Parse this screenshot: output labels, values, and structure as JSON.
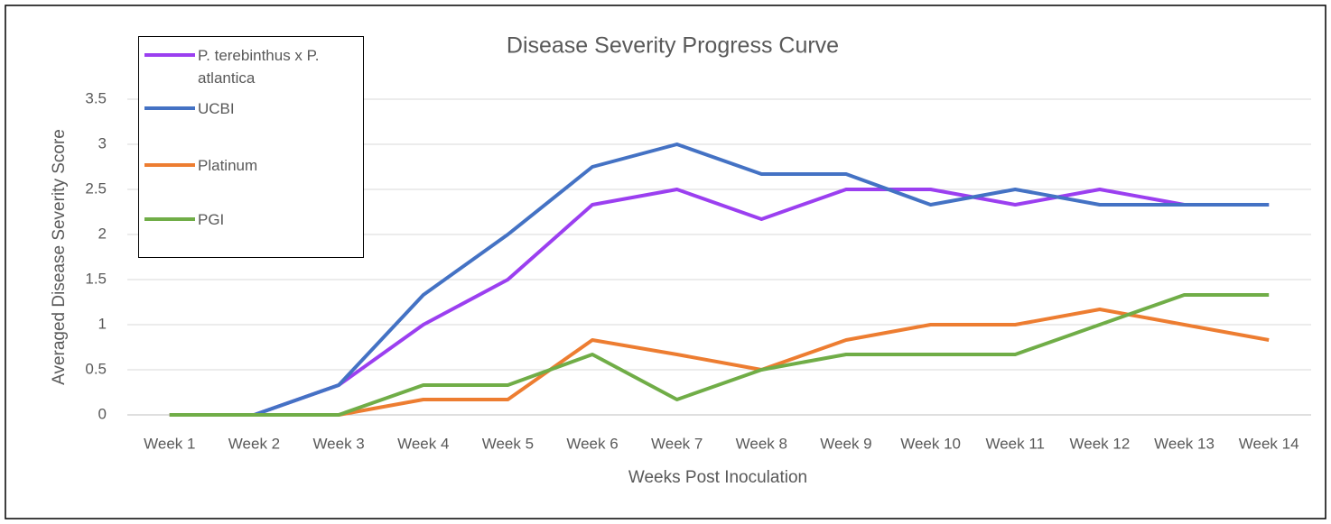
{
  "chart_data": {
    "type": "line",
    "title": "Disease Severity Progress Curve",
    "x_label": "Weeks Post Inoculation",
    "y_label": "Averaged Disease Severity Score",
    "categories": [
      "Week 1",
      "Week 2",
      "Week 3",
      "Week 4",
      "Week 5",
      "Week 6",
      "Week 7",
      "Week 8",
      "Week 9",
      "Week 10",
      "Week 11",
      "Week 12",
      "Week 13",
      "Week 14"
    ],
    "series": [
      {
        "name": "P. terebinthus x P. atlantica",
        "color": "#9b3ff0",
        "values": [
          0,
          0,
          0.33,
          1,
          1.5,
          2.33,
          2.5,
          2.17,
          2.5,
          2.5,
          2.33,
          2.5,
          2.33,
          2.33
        ]
      },
      {
        "name": "UCBI",
        "color": "#4472c4",
        "values": [
          0,
          0,
          0.33,
          1.33,
          2,
          2.75,
          3,
          2.67,
          2.67,
          2.33,
          2.5,
          2.33,
          2.33,
          2.33
        ]
      },
      {
        "name": "Platinum",
        "color": "#ed7d31",
        "values": [
          0,
          0,
          0,
          0.17,
          0.17,
          0.83,
          0.67,
          0.5,
          0.83,
          1,
          1,
          1.17,
          1,
          0.83
        ]
      },
      {
        "name": "PGI",
        "color": "#70ad47",
        "values": [
          0,
          0,
          0,
          0.33,
          0.33,
          0.67,
          0.17,
          0.5,
          0.67,
          0.67,
          0.67,
          1,
          1.33,
          1.33
        ]
      }
    ],
    "ylim": [
      0,
      3.5
    ],
    "yticks": [
      0,
      0.5,
      1,
      1.5,
      2,
      2.5,
      3,
      3.5
    ],
    "grid": true,
    "legend": "top-left"
  }
}
